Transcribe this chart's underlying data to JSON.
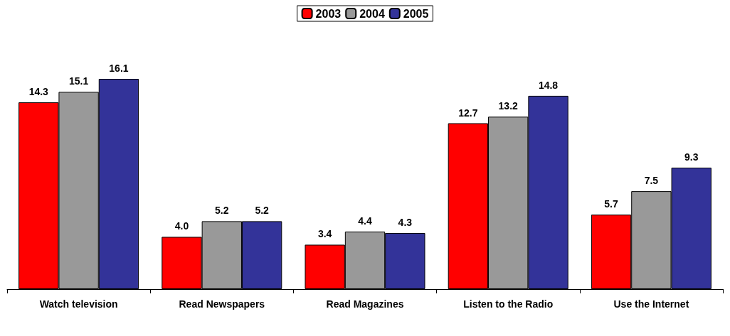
{
  "chart_data": {
    "type": "bar",
    "categories": [
      "Watch television",
      "Read Newspapers",
      "Read Magazines",
      "Listen to the Radio",
      "Use the Internet"
    ],
    "series": [
      {
        "name": "2003",
        "color": "#ff0000",
        "values": [
          14.3,
          4.0,
          3.4,
          12.7,
          5.7
        ],
        "value_labels": [
          "14.3",
          "4.0",
          "3.4",
          "12.7",
          "5.7"
        ]
      },
      {
        "name": "2004",
        "color": "#999999",
        "values": [
          15.1,
          5.2,
          4.4,
          13.2,
          7.5
        ],
        "value_labels": [
          "15.1",
          "5.2",
          "4.4",
          "13.2",
          "7.5"
        ]
      },
      {
        "name": "2005",
        "color": "#333399",
        "values": [
          16.1,
          5.2,
          4.3,
          14.8,
          9.3
        ],
        "value_labels": [
          "16.1",
          "5.2",
          "4.3",
          "14.8",
          "9.3"
        ]
      }
    ],
    "legend": "top",
    "grid": false,
    "tick_labels": "x"
  }
}
